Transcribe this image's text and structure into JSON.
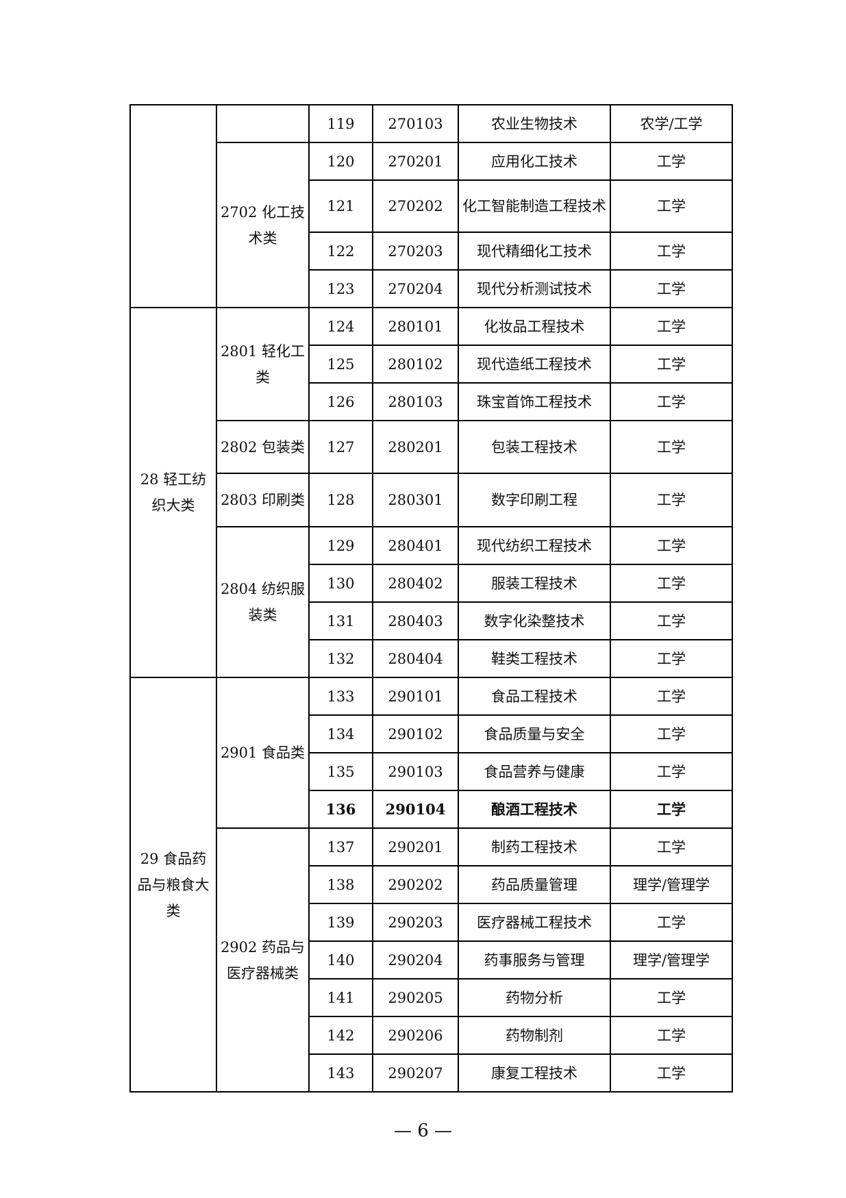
{
  "groups": [
    {
      "major": "",
      "subs": [
        {
          "name": "",
          "rows": [
            [
              "119",
              "270103",
              "农业生物技术",
              "农学/工学"
            ]
          ]
        },
        {
          "name": "2702 化工技术类",
          "rows": [
            [
              "120",
              "270201",
              "应用化工技术",
              "工学"
            ],
            [
              "121",
              "270202",
              "化工智能制造工程技术",
              "工学"
            ],
            [
              "122",
              "270203",
              "现代精细化工技术",
              "工学"
            ],
            [
              "123",
              "270204",
              "现代分析测试技术",
              "工学"
            ]
          ]
        }
      ]
    },
    {
      "major": "28 轻工纺织大类",
      "subs": [
        {
          "name": "2801 轻化工类",
          "rows": [
            [
              "124",
              "280101",
              "化妆品工程技术",
              "工学"
            ],
            [
              "125",
              "280102",
              "现代造纸工程技术",
              "工学"
            ],
            [
              "126",
              "280103",
              "珠宝首饰工程技术",
              "工学"
            ]
          ]
        },
        {
          "name": "2802 包装类",
          "rows": [
            [
              "127",
              "280201",
              "包装工程技术",
              "工学"
            ]
          ]
        },
        {
          "name": "2803 印刷类",
          "rows": [
            [
              "128",
              "280301",
              "数字印刷工程",
              "工学"
            ]
          ]
        },
        {
          "name": "2804 纺织服装类",
          "rows": [
            [
              "129",
              "280401",
              "现代纺织工程技术",
              "工学"
            ],
            [
              "130",
              "280402",
              "服装工程技术",
              "工学"
            ],
            [
              "131",
              "280403",
              "数字化染整技术",
              "工学"
            ],
            [
              "132",
              "280404",
              "鞋类工程技术",
              "工学"
            ]
          ]
        }
      ]
    },
    {
      "major": "29 食品药品与粮食大类",
      "subs": [
        {
          "name": "2901 食品类",
          "rows": [
            [
              "133",
              "290101",
              "食品工程技术",
              "工学"
            ],
            [
              "134",
              "290102",
              "食品质量与安全",
              "工学"
            ],
            [
              "135",
              "290103",
              "食品营养与健康",
              "工学"
            ],
            [
              "136",
              "290104",
              "酿酒工程技术",
              "工学"
            ]
          ]
        },
        {
          "name": "2902 药品与医疗器械类",
          "rows": [
            [
              "137",
              "290201",
              "制药工程技术",
              "工学"
            ],
            [
              "138",
              "290202",
              "药品质量管理",
              "理学/管理学"
            ],
            [
              "139",
              "290203",
              "医疗器械工程技术",
              "工学"
            ],
            [
              "140",
              "290204",
              "药事服务与管理",
              "理学/管理学"
            ],
            [
              "141",
              "290205",
              "药物分析",
              "工学"
            ],
            [
              "142",
              "290206",
              "药物制剂",
              "工学"
            ],
            [
              "143",
              "290207",
              "康复工程技术",
              "工学"
            ]
          ]
        }
      ]
    }
  ],
  "bold_rows": [
    "136"
  ],
  "page_number": "— 6 —"
}
